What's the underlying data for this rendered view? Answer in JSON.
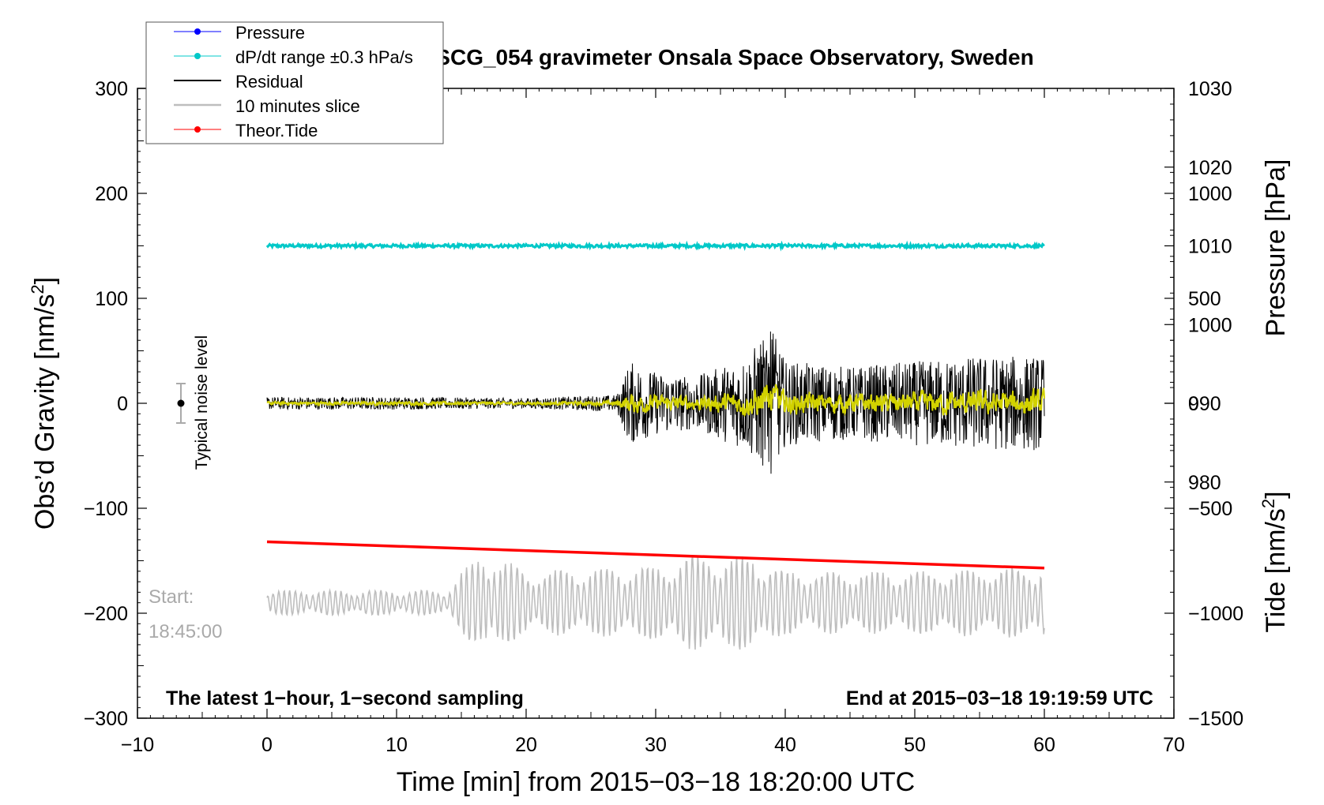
{
  "chart_data": {
    "type": "line",
    "title": "SCG_054 gravimeter Onsala Space Observatory, Sweden",
    "xlabel": "Time [min] from 2015−03−18 18:20:00 UTC",
    "ylabel_left": "Obs’d Gravity [nm/s",
    "ylabel_left_sup": "2",
    "ylabel_left_close": "]",
    "ylabel_right_top": "Pressure [hPa]",
    "ylabel_right_bottom": "Tide [nm/s",
    "ylabel_right_bottom_sup": "2",
    "ylabel_right_bottom_close": "]",
    "xlim": [
      -10,
      70
    ],
    "ylim": [
      -300,
      300
    ],
    "x_ticks": [
      -10,
      0,
      10,
      20,
      30,
      40,
      50,
      60,
      70
    ],
    "x_tick_labels": [
      "−10",
      "0",
      "10",
      "20",
      "30",
      "40",
      "50",
      "60",
      "70"
    ],
    "y_ticks": [
      300,
      200,
      100,
      0,
      -100,
      -200,
      -300
    ],
    "y_tick_labels": [
      "300",
      "200",
      "100",
      "0",
      "−100",
      "−200",
      "−300"
    ],
    "pressure_axis": {
      "ticks": [
        1030,
        1020,
        1010,
        1000,
        990,
        980
      ],
      "tick_labels": [
        "1030",
        "1020",
        "1010",
        "1000",
        "990",
        "980"
      ],
      "range": [
        950,
        1030
      ]
    },
    "tide_axis": {
      "ticks": [
        1000,
        500,
        0,
        -500,
        -1000,
        -1500
      ],
      "tick_labels": [
        "1000",
        "500",
        "0",
        "−500",
        "−1000",
        "−1500"
      ],
      "range": [
        -1500,
        1500
      ]
    },
    "series": [
      {
        "name": "Pressure",
        "color": "#0000ff",
        "values": []
      },
      {
        "name": "dP/dt range ±0.3 hPa/s",
        "color": "#00c8c8",
        "x": [
          0,
          60
        ],
        "y": [
          150,
          150
        ],
        "band_halfwidth": 1.5
      },
      {
        "name": "Residual",
        "color": "#000000",
        "x_range": [
          0,
          60
        ],
        "envelope_by_minute": [
          [
            0,
            6
          ],
          [
            10,
            6
          ],
          [
            20,
            5
          ],
          [
            27,
            8
          ],
          [
            28,
            40
          ],
          [
            30,
            30
          ],
          [
            33,
            25
          ],
          [
            37,
            45
          ],
          [
            38,
            60
          ],
          [
            39,
            70
          ],
          [
            40,
            40
          ],
          [
            45,
            35
          ],
          [
            50,
            40
          ],
          [
            55,
            45
          ],
          [
            60,
            45
          ]
        ]
      },
      {
        "name": "10 minutes slice",
        "color": "#bebebe",
        "x_range": [
          0,
          60
        ],
        "baseline": -190,
        "amplitude_by_minute": [
          [
            0,
            12
          ],
          [
            14,
            12
          ],
          [
            15,
            30
          ],
          [
            17,
            50
          ],
          [
            20,
            30
          ],
          [
            30,
            35
          ],
          [
            32,
            45
          ],
          [
            38,
            45
          ],
          [
            40,
            30
          ],
          [
            50,
            30
          ],
          [
            60,
            35
          ]
        ]
      },
      {
        "name": "Theor.Tide",
        "color": "#ff0000",
        "x": [
          0,
          60
        ],
        "y": [
          -132,
          -157
        ]
      }
    ],
    "filtered_series": {
      "name": "yellow trace",
      "color": "#d2d200"
    },
    "noise_level": {
      "label": "Typical noise level",
      "x": -7,
      "y": 0,
      "error": 20
    },
    "legend_position": "top-left",
    "annotations": {
      "start_label": "Start:",
      "start_time": "18:45:00",
      "bottom_left": "The latest 1−hour, 1−second sampling",
      "bottom_right": "End at 2015−03−18 19:19:59 UTC"
    }
  },
  "colors": {
    "pressure": "#0000ff",
    "dpdt": "#00c8c8",
    "residual": "#000000",
    "slice": "#bebebe",
    "tide": "#ff0000",
    "filtered": "#d2d200"
  }
}
